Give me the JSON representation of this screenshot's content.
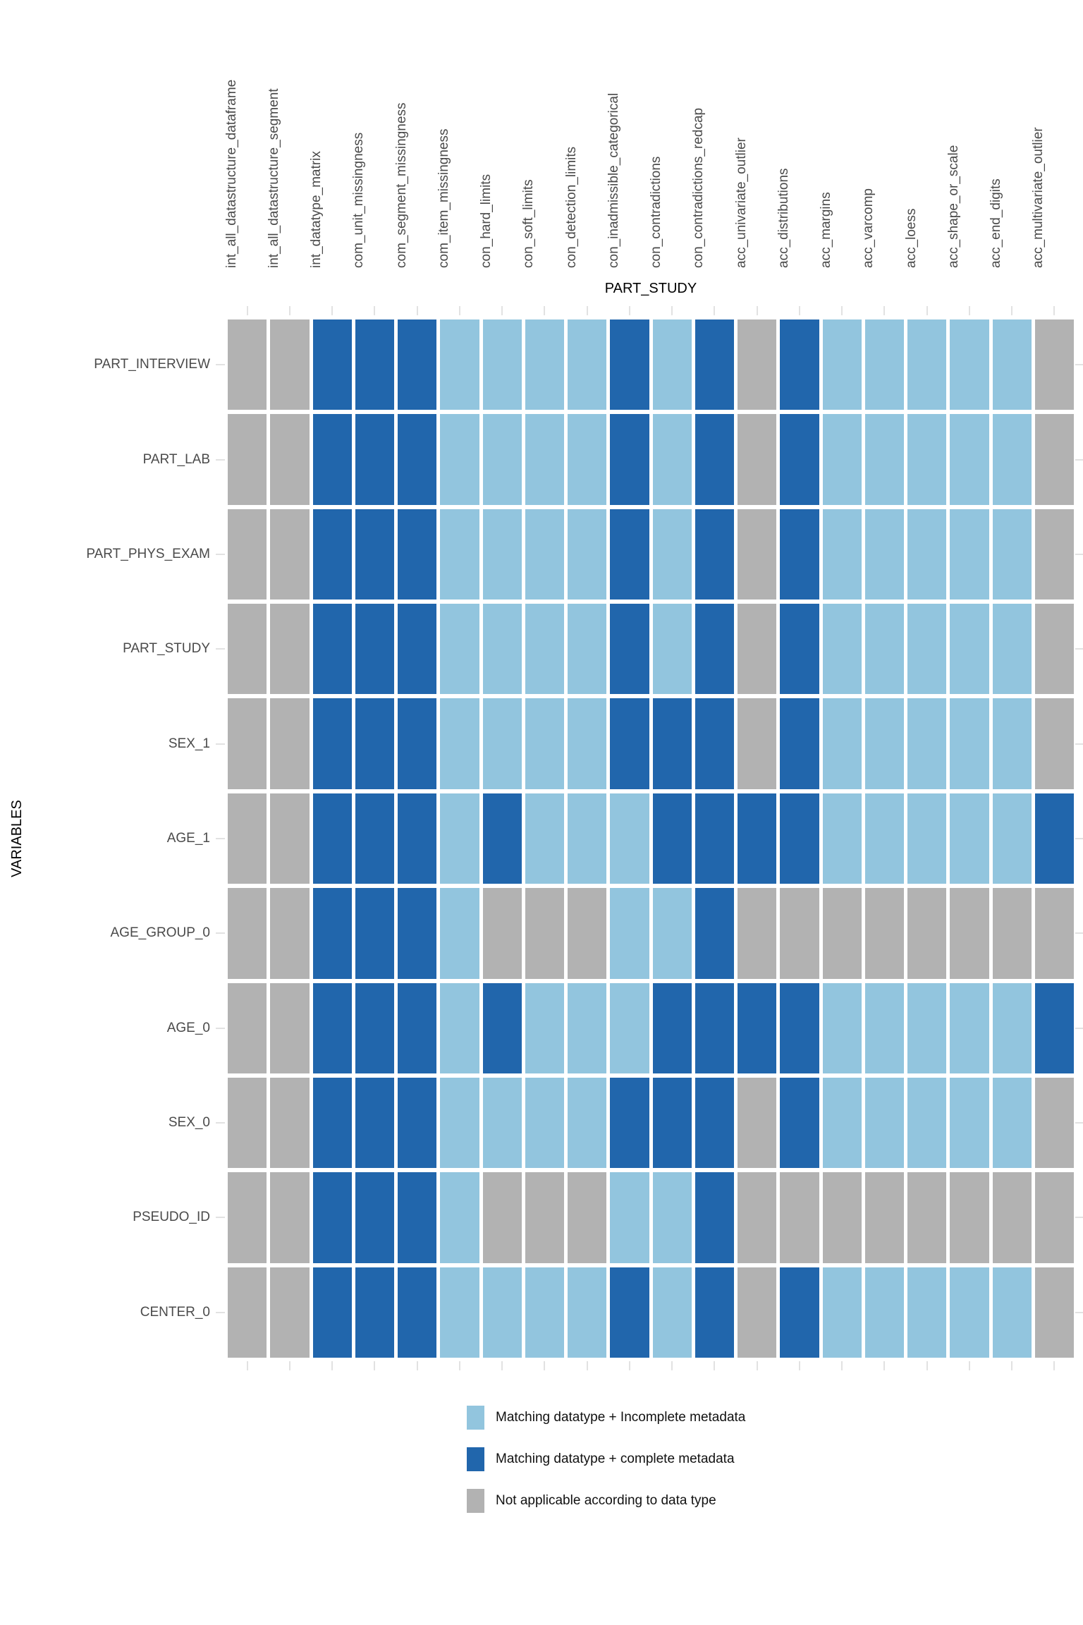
{
  "chart_data": {
    "type": "heatmap",
    "xlabel": "PART_STUDY",
    "ylabel": "VARIABLES",
    "x_axis_position": "top",
    "grid": "off",
    "legend_position": "bottom",
    "columns": [
      "int_all_datastructure_dataframe",
      "int_all_datastructure_segment",
      "int_datatype_matrix",
      "com_unit_missingness",
      "com_segment_missingness",
      "com_item_missingness",
      "con_hard_limits",
      "con_soft_limits",
      "con_detection_limits",
      "con_inadmissible_categorical",
      "con_contradictions",
      "con_contradictions_redcap",
      "acc_univariate_outlier",
      "acc_distributions",
      "acc_margins",
      "acc_varcomp",
      "acc_loess",
      "acc_shape_or_scale",
      "acc_end_digits",
      "acc_multivariate_outlier"
    ],
    "rows": [
      "PART_INTERVIEW",
      "PART_LAB",
      "PART_PHYS_EXAM",
      "PART_STUDY",
      "SEX_1",
      "AGE_1",
      "AGE_GROUP_0",
      "AGE_0",
      "SEX_0",
      "PSEUDO_ID",
      "CENTER_0"
    ],
    "matrix": [
      "NNCCCIIIICICNCIIIIIN",
      "NNCCCIIIICICNCIIIIIN",
      "NNCCCIIIICICNCIIIIIN",
      "NNCCCIIIICICNCIIIIIN",
      "NNCCCIIIICCCNCIIIIIN",
      "NNCCCICIIICCCCIIIIIC",
      "NNCCCINNNIICNNNNNNNN",
      "NNCCCICIIICCCCIIIIIC",
      "NNCCCIIIICCCNCIIIIIN",
      "NNCCCINNNIICNNNNNNNN",
      "NNCCCIIIICICNCIIIIIN"
    ],
    "color_map": {
      "I": "#92C5DE",
      "C": "#2166AC",
      "N": "#B2B2B2"
    },
    "legend": [
      {
        "key": "I",
        "label": "Matching datatype + Incomplete metadata",
        "color": "#92C5DE"
      },
      {
        "key": "C",
        "label": "Matching datatype + complete metadata",
        "color": "#2166AC"
      },
      {
        "key": "N",
        "label": "Not applicable according to data type",
        "color": "#B2B2B2"
      }
    ],
    "tick_color": "#e2e2e2"
  }
}
